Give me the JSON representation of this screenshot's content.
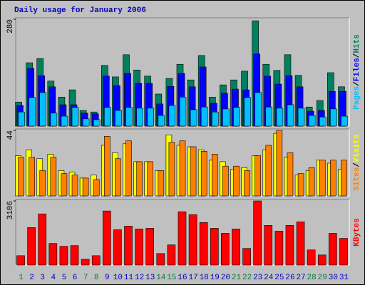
{
  "chart_data": {
    "type": "bar",
    "title": "Daily usage for January 2006",
    "title_color": "#0000c0",
    "categories": [
      "1",
      "2",
      "3",
      "4",
      "5",
      "6",
      "7",
      "8",
      "9",
      "10",
      "11",
      "12",
      "13",
      "14",
      "15",
      "16",
      "17",
      "18",
      "19",
      "20",
      "21",
      "22",
      "23",
      "24",
      "25",
      "26",
      "27",
      "28",
      "29",
      "30",
      "31"
    ],
    "category_colors": [
      "#008040",
      "#0000c0",
      "#0000c0",
      "#0000c0",
      "#0000c0",
      "#0000c0",
      "#008040",
      "#008040",
      "#0000c0",
      "#0000c0",
      "#0000c0",
      "#0000c0",
      "#0000c0",
      "#008040",
      "#008040",
      "#0000c0",
      "#0000c0",
      "#0000c0",
      "#0000c0",
      "#0000c0",
      "#008040",
      "#008040",
      "#0000c0",
      "#0000c0",
      "#0000c0",
      "#0000c0",
      "#0000c0",
      "#008040",
      "#008040",
      "#0000c0",
      "#0000c0"
    ],
    "legend_separator": "/",
    "panels": [
      {
        "type": "bar",
        "ylim": [
          0,
          280
        ],
        "yticks": [
          280
        ],
        "series": [
          {
            "name": "Hits",
            "color": "#008060",
            "values": [
              63,
              166,
              177,
              118,
              76,
              95,
              41,
              37,
              159,
              129,
              187,
              147,
              131,
              84,
              125,
              162,
              121,
              185,
              76,
              108,
              121,
              144,
              276,
              162,
              146,
              187,
              133,
              50,
              67,
              140,
              103
            ]
          },
          {
            "name": "Files",
            "color": "#0000ff",
            "values": [
              54,
              151,
              132,
              103,
              56,
              56,
              34,
              32,
              131,
              106,
              138,
              112,
              112,
              58,
              104,
              138,
              103,
              155,
              60,
              86,
              97,
              95,
              189,
              131,
              110,
              132,
              103,
              39,
              41,
              91,
              91
            ]
          },
          {
            "name": "Pages",
            "color": "#00c0ff",
            "values": [
              37,
              75,
              88,
              34,
              26,
              49,
              19,
              17,
              49,
              41,
              49,
              47,
              47,
              28,
              54,
              76,
              43,
              50,
              37,
              45,
              49,
              75,
              88,
              50,
              47,
              56,
              47,
              28,
              24,
              45,
              26
            ]
          }
        ]
      },
      {
        "type": "bar",
        "ylim": [
          0,
          44
        ],
        "yticks": [
          44
        ],
        "series": [
          {
            "name": "Visits",
            "color": "#ffff00",
            "values": [
              27,
              31,
              25,
              28,
              17,
              16,
              12,
              14,
              34,
              29,
              35,
              23,
              23,
              17,
              41,
              34,
              33,
              31,
              24,
              23,
              18,
              19,
              27,
              31,
              42,
              26,
              14,
              17,
              24,
              22,
              18
            ]
          },
          {
            "name": "Sites",
            "color": "#ff8000",
            "values": [
              26,
              26,
              17,
              26,
              15,
              14,
              12,
              11,
              40,
              25,
              37,
              23,
              23,
              17,
              36,
              37,
              33,
              30,
              28,
              20,
              20,
              17,
              27,
              34,
              44,
              29,
              15,
              19,
              24,
              24,
              24
            ]
          }
        ]
      },
      {
        "type": "bar",
        "ylim": [
          0,
          3106
        ],
        "yticks": [
          3106
        ],
        "series": [
          {
            "name": "KBytes",
            "color": "#ff0000",
            "values": [
              454,
              1815,
              2478,
              1047,
              907,
              942,
              279,
              454,
              2618,
              1710,
              1885,
              1745,
              1780,
              558,
              977,
              2583,
              2443,
              2059,
              1780,
              1536,
              1745,
              803,
              3106,
              1920,
              1640,
              1920,
              2094,
              733,
              489,
              1536,
              1292
            ]
          }
        ]
      }
    ]
  }
}
